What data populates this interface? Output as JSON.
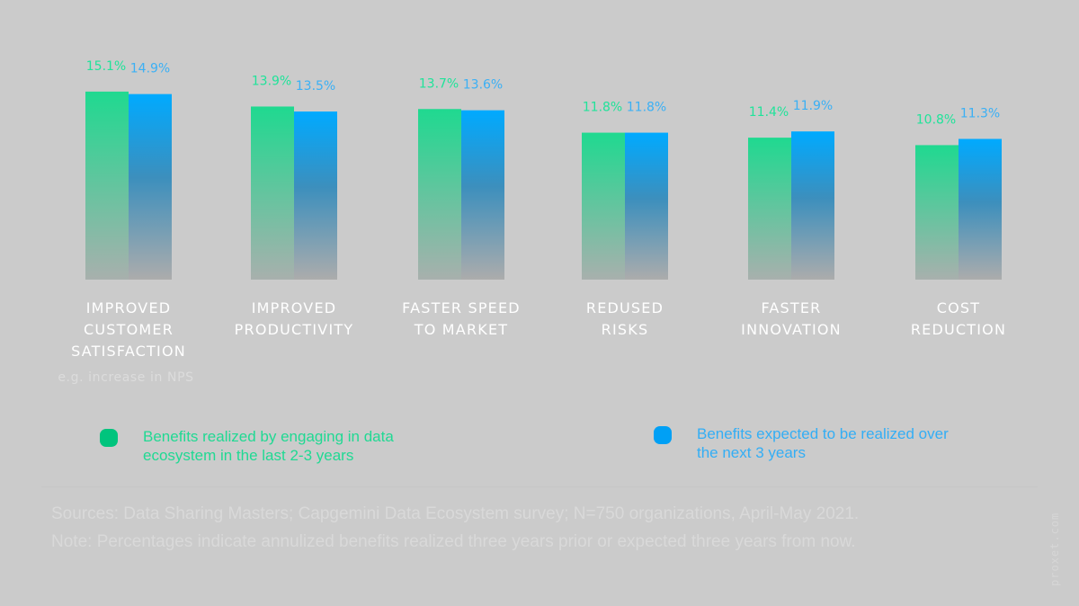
{
  "chart_data": {
    "type": "bar",
    "title": "",
    "xlabel": "",
    "ylabel": "",
    "ylim": [
      0,
      16
    ],
    "grid": false,
    "value_suffix": "%",
    "categories": [
      "IMPROVED\nCUSTOMER\nSATISFACTION",
      "IMPROVED\nPRODUCTIVITY",
      "FASTER SPEED\nTO MARKET",
      "REDUSED\nRISKS",
      "FASTER\nINNOVATION",
      "COST\nREDUCTION"
    ],
    "category_note": "e.g. increase in NPS",
    "series": [
      {
        "name": "Benefits realized by engaging in data ecosystem in the last 2-3 years",
        "color": "#1fd990",
        "label_color": "#20e39a",
        "values": [
          15.1,
          13.9,
          13.7,
          11.8,
          11.4,
          10.8
        ],
        "labels": [
          "15.1%",
          "13.9%",
          "13.7%",
          "11.8%",
          "11.4%",
          "10.8%"
        ]
      },
      {
        "name": "Benefits expected to be realized over the next 3 years",
        "color": "#00aaff",
        "label_color": "#3bb0f5",
        "values": [
          14.9,
          13.5,
          13.6,
          11.8,
          11.9,
          11.3
        ],
        "labels": [
          "14.9%",
          "13.5%",
          "13.6%",
          "11.8%",
          "11.9%",
          "11.3%"
        ]
      }
    ],
    "legend_position": "bottom"
  },
  "legend": [
    {
      "text": "Benefits realized by engaging in data ecosystem in the last 2-3 years",
      "color": "#00c47d",
      "text_color": "#20d993"
    },
    {
      "text": "Benefits expected to be realized over the next 3 years",
      "color": "#00a0f5",
      "text_color": "#33aef5"
    }
  ],
  "notes": {
    "sources": "Sources: Data Sharing Masters; Capgemini Data Ecosystem survey; N=750 organizations, April-May 2021.",
    "note": "Note: Percentages indicate annulized benefits realized three years prior or expected three years from now."
  },
  "watermark": "proxet.com"
}
